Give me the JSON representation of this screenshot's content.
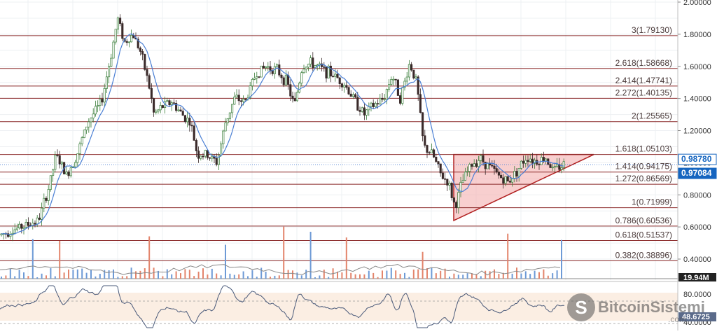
{
  "chart_data": {
    "type": "candlestick",
    "y_axis": {
      "range": [
        0.3,
        2.0
      ],
      "ticks": [
        "2.00000",
        "1.80000",
        "1.60000",
        "1.40000",
        "1.20000",
        "1.00000",
        "0.80000",
        "0.60000",
        "0.40000"
      ]
    },
    "price_badges": [
      {
        "value": 0.9878,
        "label": "0.98780",
        "color": "#ffffff",
        "text_color": "#1565c0"
      },
      {
        "value": 0.97084,
        "label": "0.97084",
        "color": "#1565c0",
        "text_color": "#ffffff"
      }
    ],
    "fibonacci_levels": [
      {
        "ratio": "3",
        "value": 1.7913,
        "label": "3(1.79130)"
      },
      {
        "ratio": "2.618",
        "value": 1.58668,
        "label": "2.618(1.58668)"
      },
      {
        "ratio": "2.414",
        "value": 1.47741,
        "label": "2.414(1.47741)"
      },
      {
        "ratio": "2.272",
        "value": 1.40135,
        "label": "2.272(1.40135)"
      },
      {
        "ratio": "2",
        "value": 1.25565,
        "label": "2(1.25565)"
      },
      {
        "ratio": "1.618",
        "value": 1.05103,
        "label": "1.618(1.05103)"
      },
      {
        "ratio": "1.414",
        "value": 0.94175,
        "label": "1.414(0.94175)"
      },
      {
        "ratio": "1.272",
        "value": 0.86569,
        "label": "1.272(0.86569)"
      },
      {
        "ratio": "1",
        "value": 0.71999,
        "label": "1(0.71999)"
      },
      {
        "ratio": "0.786",
        "value": 0.60536,
        "label": "0.786(0.60536)"
      },
      {
        "ratio": "0.618",
        "value": 0.51537,
        "label": "0.618(0.51537)"
      },
      {
        "ratio": "0.382",
        "value": 0.38896,
        "label": "0.382(0.38896)"
      }
    ],
    "price_path": [
      [
        0,
        0.55
      ],
      [
        30,
        0.6
      ],
      [
        55,
        0.64
      ],
      [
        70,
        0.85
      ],
      [
        80,
        1.05
      ],
      [
        95,
        0.92
      ],
      [
        110,
        1.05
      ],
      [
        125,
        1.25
      ],
      [
        145,
        1.38
      ],
      [
        160,
        1.7
      ],
      [
        168,
        1.9
      ],
      [
        178,
        1.75
      ],
      [
        190,
        1.8
      ],
      [
        200,
        1.7
      ],
      [
        212,
        1.5
      ],
      [
        220,
        1.3
      ],
      [
        232,
        1.35
      ],
      [
        245,
        1.38
      ],
      [
        260,
        1.3
      ],
      [
        272,
        1.25
      ],
      [
        282,
        1.05
      ],
      [
        295,
        1.05
      ],
      [
        310,
        1.0
      ],
      [
        322,
        1.25
      ],
      [
        335,
        1.4
      ],
      [
        350,
        1.38
      ],
      [
        365,
        1.55
      ],
      [
        380,
        1.6
      ],
      [
        395,
        1.58
      ],
      [
        410,
        1.5
      ],
      [
        420,
        1.35
      ],
      [
        432,
        1.6
      ],
      [
        445,
        1.62
      ],
      [
        460,
        1.58
      ],
      [
        475,
        1.55
      ],
      [
        490,
        1.5
      ],
      [
        505,
        1.4
      ],
      [
        520,
        1.3
      ],
      [
        532,
        1.35
      ],
      [
        548,
        1.4
      ],
      [
        560,
        1.55
      ],
      [
        572,
        1.4
      ],
      [
        585,
        1.62
      ],
      [
        595,
        1.5
      ],
      [
        605,
        1.1
      ],
      [
        618,
        1.05
      ],
      [
        630,
        0.92
      ],
      [
        640,
        0.88
      ],
      [
        650,
        0.72
      ],
      [
        660,
        0.88
      ],
      [
        672,
        0.98
      ],
      [
        685,
        1.03
      ],
      [
        698,
        0.98
      ],
      [
        712,
        0.92
      ],
      [
        725,
        0.88
      ],
      [
        740,
        0.96
      ],
      [
        752,
        1.04
      ],
      [
        765,
        1.01
      ],
      [
        780,
        1.03
      ],
      [
        790,
        0.95
      ],
      [
        800,
        0.98
      ],
      [
        806,
        0.99
      ]
    ],
    "triangle": {
      "apex_value": 1.05103,
      "base_low": 0.64,
      "top": 1.05103
    },
    "volume_axis_label": "19.94M",
    "rsi": {
      "ticks": [
        "80.0000",
        "40.0000"
      ],
      "upper": 80,
      "lower": 40,
      "last_label": "48.6725"
    }
  },
  "watermark": {
    "brand": "BitcoinSistemi",
    "suffix": ".com",
    "logo_letter": "S"
  },
  "colors": {
    "up": "#3a7d3a",
    "down": "#3a2a2a",
    "fib_line": "#8b2a2a",
    "triangle_fill": "#f4b6b6",
    "triangle_stroke": "#b22222",
    "ma": "#4a7fd4"
  }
}
